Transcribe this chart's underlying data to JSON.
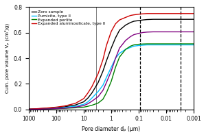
{
  "title": "",
  "xlabel": "Pore diameter dₚ (µm)",
  "ylabel": "Cum. pore volume Vₚ (cm³/g)",
  "xlim_left": 1000,
  "xlim_right": 0.001,
  "ylim": [
    0.0,
    0.8
  ],
  "yticks": [
    0.0,
    0.2,
    0.4,
    0.6,
    0.8
  ],
  "vline_solid": 3.5,
  "vline_dashed1": 0.09,
  "vline_dashed2": 0.003,
  "legend_labels": [
    "Zero sample",
    "Pumicite, type II",
    "Expanded perlite",
    "Expanded aluminosilicate, type II"
  ],
  "background_color": "#ffffff",
  "curves": {
    "zero_sample": {
      "color": "black",
      "x": [
        1000,
        500,
        200,
        100,
        50,
        20,
        10,
        7,
        5,
        3,
        2,
        1.5,
        1.0,
        0.7,
        0.5,
        0.3,
        0.2,
        0.15,
        0.1,
        0.07,
        0.05,
        0.03,
        0.02,
        0.01,
        0.005,
        0.002,
        0.001
      ],
      "y": [
        0.002,
        0.005,
        0.01,
        0.015,
        0.02,
        0.035,
        0.06,
        0.09,
        0.13,
        0.21,
        0.3,
        0.38,
        0.48,
        0.56,
        0.62,
        0.66,
        0.68,
        0.69,
        0.695,
        0.7,
        0.703,
        0.705,
        0.705,
        0.705,
        0.705,
        0.705,
        0.705
      ]
    },
    "pumicite": {
      "color": "#00bfff",
      "x": [
        1000,
        500,
        200,
        100,
        50,
        20,
        10,
        7,
        5,
        3,
        2,
        1.5,
        1.0,
        0.7,
        0.5,
        0.3,
        0.2,
        0.15,
        0.1,
        0.07,
        0.05,
        0.03,
        0.02,
        0.01,
        0.005,
        0.002,
        0.001
      ],
      "y": [
        0.002,
        0.003,
        0.006,
        0.01,
        0.015,
        0.025,
        0.04,
        0.06,
        0.09,
        0.14,
        0.19,
        0.25,
        0.33,
        0.4,
        0.44,
        0.47,
        0.485,
        0.495,
        0.5,
        0.503,
        0.505,
        0.505,
        0.505,
        0.505,
        0.505,
        0.505,
        0.505
      ]
    },
    "expanded_perlite": {
      "color": "#008000",
      "x": [
        1000,
        500,
        200,
        100,
        50,
        20,
        10,
        7,
        5,
        3,
        2,
        1.5,
        1.0,
        0.7,
        0.5,
        0.3,
        0.2,
        0.15,
        0.1,
        0.07,
        0.05,
        0.03,
        0.02,
        0.01,
        0.005,
        0.002,
        0.001
      ],
      "y": [
        0.001,
        0.002,
        0.004,
        0.006,
        0.009,
        0.013,
        0.018,
        0.025,
        0.033,
        0.05,
        0.08,
        0.13,
        0.22,
        0.33,
        0.41,
        0.47,
        0.495,
        0.505,
        0.51,
        0.512,
        0.513,
        0.513,
        0.513,
        0.513,
        0.513,
        0.513,
        0.513
      ]
    },
    "expanded_aluminosilicate": {
      "color": "#cc0000",
      "x": [
        1000,
        500,
        200,
        100,
        50,
        20,
        10,
        7,
        5,
        3,
        2,
        1.5,
        1.0,
        0.7,
        0.5,
        0.3,
        0.2,
        0.15,
        0.1,
        0.07,
        0.05,
        0.03,
        0.02,
        0.01,
        0.005,
        0.002,
        0.001
      ],
      "y": [
        0.003,
        0.006,
        0.012,
        0.018,
        0.027,
        0.048,
        0.085,
        0.13,
        0.18,
        0.28,
        0.39,
        0.5,
        0.61,
        0.67,
        0.7,
        0.72,
        0.735,
        0.74,
        0.745,
        0.748,
        0.75,
        0.75,
        0.75,
        0.75,
        0.75,
        0.75,
        0.75
      ]
    },
    "purple": {
      "color": "#800080",
      "x": [
        1000,
        500,
        200,
        100,
        50,
        20,
        10,
        7,
        5,
        3,
        2,
        1.5,
        1.0,
        0.7,
        0.5,
        0.3,
        0.2,
        0.15,
        0.1,
        0.07,
        0.05,
        0.03,
        0.02,
        0.01,
        0.005,
        0.002,
        0.001
      ],
      "y": [
        0.001,
        0.002,
        0.004,
        0.007,
        0.01,
        0.018,
        0.03,
        0.045,
        0.065,
        0.1,
        0.15,
        0.21,
        0.3,
        0.4,
        0.48,
        0.54,
        0.57,
        0.585,
        0.595,
        0.602,
        0.605,
        0.607,
        0.607,
        0.607,
        0.607,
        0.607,
        0.607
      ]
    }
  }
}
